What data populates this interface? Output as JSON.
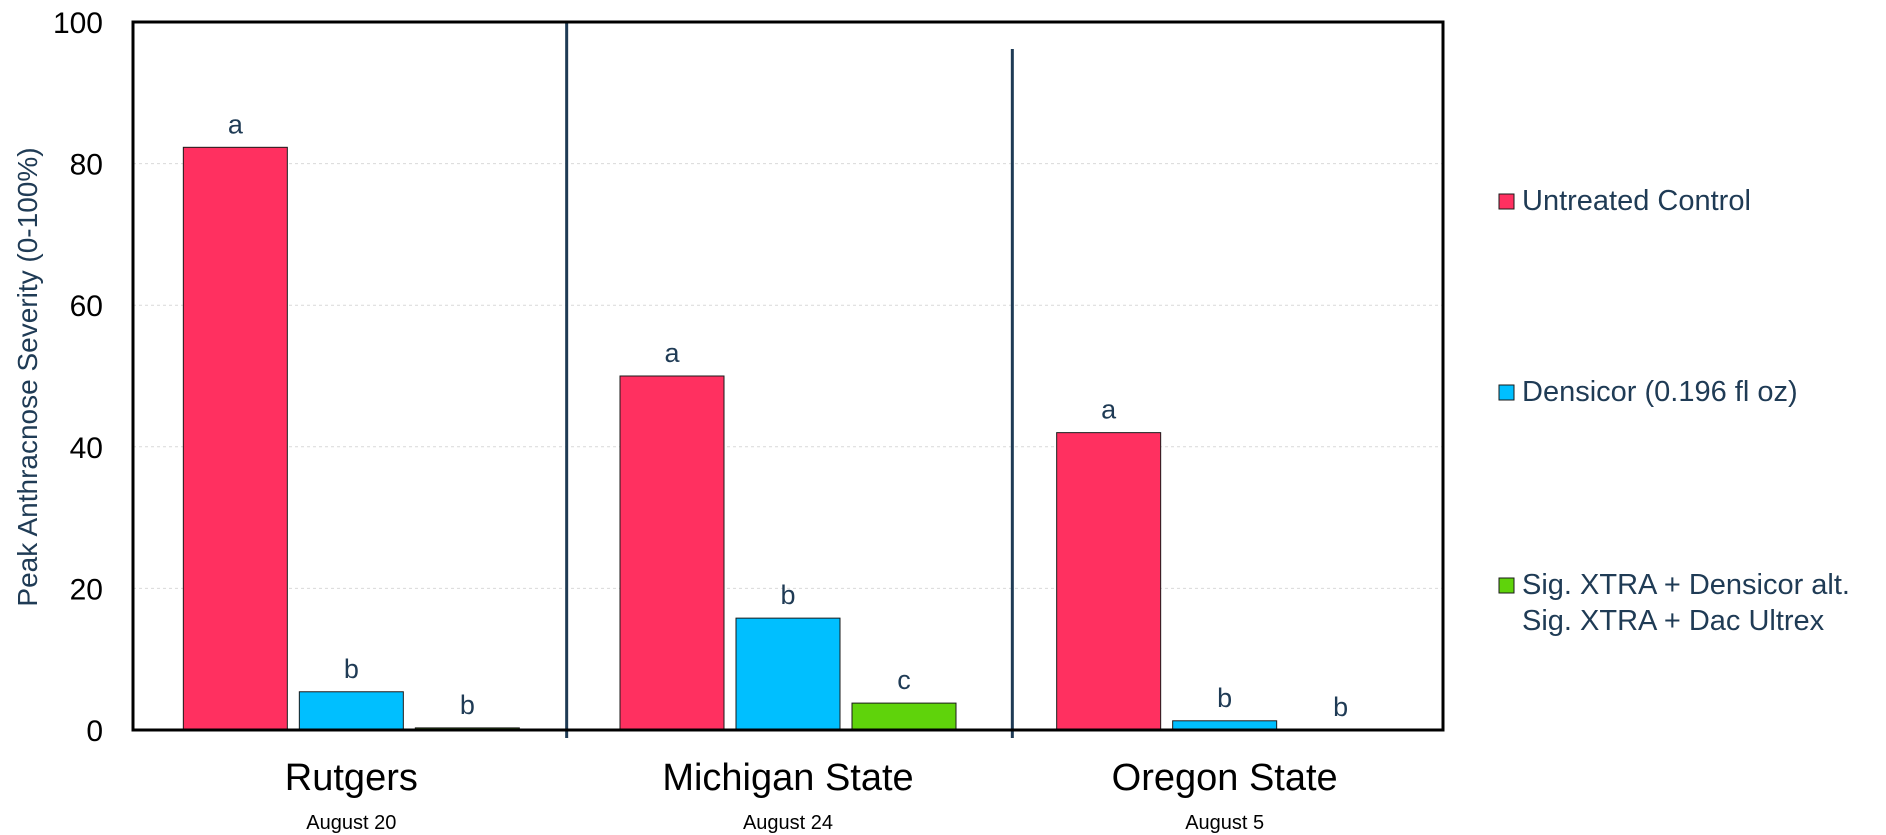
{
  "chart_data": {
    "type": "bar",
    "title": "",
    "ylabel": "Peak Anthracnose Severity (0-100%)",
    "xlabel": "",
    "ylim": [
      0,
      100
    ],
    "yticks": [
      "0",
      "20",
      "40",
      "60",
      "80",
      "100"
    ],
    "grid": true,
    "legend_position": "right",
    "categories": [
      "Rutgers",
      "Michigan State",
      "Oregon State"
    ],
    "category_dates": [
      "August 20",
      "August 24",
      "August 5"
    ],
    "series": [
      {
        "name": "Untreated Control",
        "color": "#ff3060",
        "values": [
          82.3,
          50.0,
          42.0
        ],
        "letters": [
          "a",
          "a",
          "a"
        ]
      },
      {
        "name": "Densicor (0.196 fl oz)",
        "color": "#00bfff",
        "values": [
          5.4,
          15.8,
          1.3
        ],
        "letters": [
          "b",
          "b",
          "b"
        ]
      },
      {
        "name": "Sig. XTRA + Densicor alt.",
        "name_line2": "Sig. XTRA + Dac Ultrex",
        "color": "#5fd30b",
        "values": [
          0.3,
          3.8,
          0.0
        ],
        "letters": [
          "b",
          "c",
          "b"
        ]
      }
    ]
  }
}
